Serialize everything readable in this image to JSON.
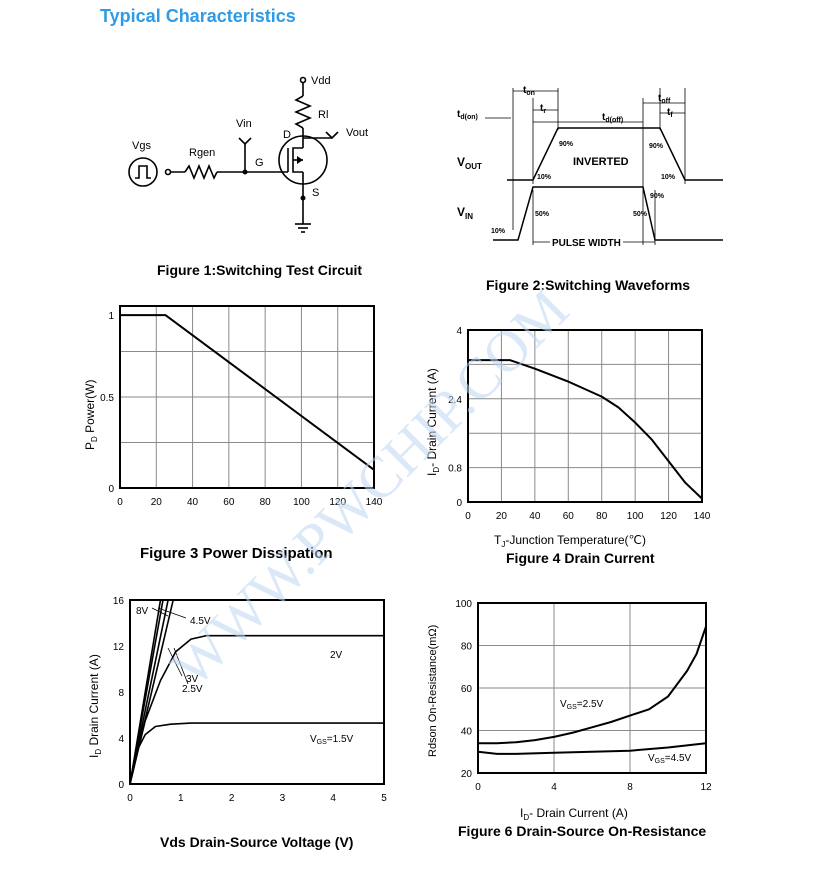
{
  "section_title": "Typical Characteristics",
  "watermark": "WWW.PWCHIP.COM",
  "figures": {
    "fig1": {
      "caption": "Figure 1:Switching Test Circuit",
      "labels": {
        "vdd": "Vdd",
        "rl": "Rl",
        "vout": "Vout",
        "vin": "Vin",
        "vgs": "Vgs",
        "rgen": "Rgen",
        "d": "D",
        "g": "G",
        "s": "S"
      }
    },
    "fig2": {
      "caption": "Figure 2:Switching Waveforms",
      "labels": {
        "ton": "t",
        "ton_sub": "on",
        "toff": "t",
        "toff_sub": "off",
        "tr": "t",
        "tr_sub": "r",
        "tf": "t",
        "tf_sub": "f",
        "tdon": "t",
        "tdon_sub": "d(on)",
        "tdoff": "t",
        "tdoff_sub": "d(off)",
        "vout": "V",
        "vout_sub": "OUT",
        "vin": "V",
        "vin_sub": "IN",
        "inverted": "INVERTED",
        "pulse_width": "PULSE WIDTH",
        "p90": "90%",
        "p10": "10%",
        "p50": "50%"
      }
    }
  },
  "chart_data": [
    {
      "id": "fig3",
      "type": "line",
      "title": "Figure 3 Power Dissipation",
      "ylabel": "P",
      "ylabel_sub": "D",
      "ylabel_rest": "  Power(W)",
      "xlabel": "",
      "xlim": [
        0,
        140
      ],
      "ylim": [
        0,
        1.0
      ],
      "grid": true,
      "xticks": [
        "0",
        "20",
        "40",
        "60",
        "80",
        "100",
        "120",
        "140"
      ],
      "yticks": [
        {
          "v": 0,
          "label": "0"
        },
        {
          "v": 0.5,
          "label": "0.5"
        },
        {
          "v": 0.95,
          "label": "1"
        }
      ],
      "series": [
        {
          "name": "PD",
          "x": [
            0,
            25,
            140
          ],
          "y": [
            0.95,
            0.95,
            0.1
          ]
        }
      ]
    },
    {
      "id": "fig4",
      "type": "line",
      "title": "Figure 4 Drain Current",
      "ylabel": "I",
      "ylabel_sub": "D",
      "ylabel_rest": "- Drain Current (A)",
      "xlabel": "T",
      "xlabel_sub": "J",
      "xlabel_rest": "-Junction Temperature(℃)",
      "xlim": [
        0,
        140
      ],
      "ylim": [
        0,
        4
      ],
      "grid": true,
      "xticks": [
        "0",
        "20",
        "40",
        "60",
        "80",
        "100",
        "120",
        "140"
      ],
      "yticks": [
        {
          "v": 0,
          "label": "0"
        },
        {
          "v": 0.8,
          "label": "0.8"
        },
        {
          "v": 2.4,
          "label": "2.4"
        },
        {
          "v": 4,
          "label": "4"
        }
      ],
      "series": [
        {
          "name": "ID",
          "x": [
            0,
            25,
            40,
            60,
            80,
            90,
            100,
            110,
            120,
            130,
            140
          ],
          "y": [
            3.3,
            3.3,
            3.1,
            2.8,
            2.45,
            2.2,
            1.85,
            1.45,
            0.95,
            0.45,
            0.08
          ]
        }
      ]
    },
    {
      "id": "fig5",
      "type": "line",
      "title": "Vds Drain-Source Voltage (V)",
      "ylabel": "I",
      "ylabel_sub": "D",
      "ylabel_rest": " Drain Current (A)",
      "xlim": [
        0,
        5
      ],
      "ylim": [
        0,
        16
      ],
      "grid": false,
      "xticks": [
        "0",
        "1",
        "2",
        "3",
        "4",
        "5"
      ],
      "yticks": [
        {
          "v": 0,
          "label": "0"
        },
        {
          "v": 4,
          "label": "4"
        },
        {
          "v": 8,
          "label": "8"
        },
        {
          "v": 12,
          "label": "12"
        },
        {
          "v": 16,
          "label": "16"
        }
      ],
      "series": [
        {
          "name": "8V",
          "x": [
            0,
            0.6
          ],
          "y": [
            0,
            16
          ]
        },
        {
          "name": "4.5V",
          "x": [
            0,
            0.65
          ],
          "y": [
            0,
            16
          ]
        },
        {
          "name": "3V",
          "x": [
            0,
            0.75
          ],
          "y": [
            0,
            16
          ]
        },
        {
          "name": "2.5V",
          "x": [
            0,
            0.85
          ],
          "y": [
            0,
            16
          ]
        },
        {
          "name": "2V",
          "x": [
            0,
            0.3,
            0.6,
            0.9,
            1.2,
            1.5,
            2,
            3,
            4,
            5
          ],
          "y": [
            0,
            5.5,
            9,
            11.5,
            12.6,
            12.9,
            12.9,
            12.9,
            12.9,
            12.9
          ]
        },
        {
          "name": "VGS=1.5V",
          "x": [
            0,
            0.15,
            0.3,
            0.5,
            0.8,
            1.2,
            2,
            3,
            4,
            5
          ],
          "y": [
            0,
            3,
            4.3,
            5,
            5.2,
            5.3,
            5.3,
            5.3,
            5.3,
            5.3
          ]
        }
      ],
      "labels": {
        "l8": "8V",
        "l45": "4.5V",
        "l3": "3V",
        "l25": "2.5V",
        "l2": "2V",
        "l15": "V",
        "l15_sub": "GS",
        "l15_rest": "=1.5V"
      }
    },
    {
      "id": "fig6",
      "type": "line",
      "title": "Figure 6 Drain-Source On-Resistance",
      "ylabel": "Rdson On-Resistance(mΩ)",
      "xlabel": "I",
      "xlabel_sub": "D",
      "xlabel_rest": "- Drain Current (A)",
      "xlim": [
        0,
        12
      ],
      "ylim": [
        20,
        100
      ],
      "grid": true,
      "xticks": [
        "0",
        "4",
        "8",
        "12"
      ],
      "yticks": [
        {
          "v": 20,
          "label": "20"
        },
        {
          "v": 40,
          "label": "40"
        },
        {
          "v": 60,
          "label": "60"
        },
        {
          "v": 80,
          "label": "80"
        },
        {
          "v": 100,
          "label": "100"
        }
      ],
      "series": [
        {
          "name": "VGS=2.5V",
          "x": [
            0,
            1,
            2,
            3,
            4,
            5,
            6,
            7,
            8,
            9,
            10,
            11,
            11.5,
            12
          ],
          "y": [
            34,
            34,
            34.5,
            35.5,
            37,
            39,
            41.5,
            44,
            47,
            50,
            56,
            68,
            76,
            89
          ]
        },
        {
          "name": "VGS=4.5V",
          "x": [
            0,
            1,
            2,
            4,
            6,
            8,
            10,
            12
          ],
          "y": [
            30,
            29,
            29,
            29.5,
            30,
            30.5,
            32,
            34
          ]
        }
      ],
      "labels": {
        "l25": "V",
        "l25_sub": "GS",
        "l25_rest": "=2.5V",
        "l45": "V",
        "l45_sub": "GS",
        "l45_rest": "=4.5V"
      }
    }
  ]
}
